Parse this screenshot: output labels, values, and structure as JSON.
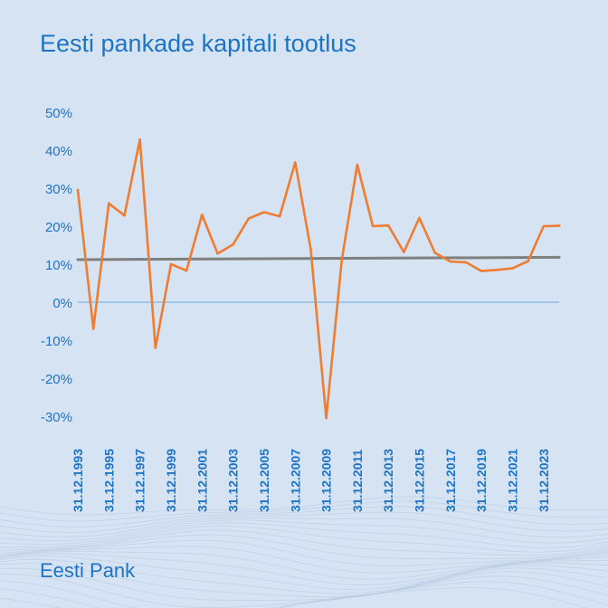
{
  "title": "Eesti pankade kapitali tootlus",
  "brand": "Eesti Pank",
  "colors": {
    "background": "#d6e3f3",
    "accent": "#1e74c4",
    "series_line": "#ee7d31",
    "reference_line": "#7f7f7f",
    "zero_line": "#6fa8dc",
    "waves": "#b9cbe3"
  },
  "chart_data": {
    "type": "line",
    "title": "Eesti pankade kapitali tootlus",
    "xlabel": "",
    "ylabel": "",
    "ylim": [
      -30,
      50
    ],
    "grid": false,
    "legend": "none",
    "y_ticks": [
      "50%",
      "40%",
      "30%",
      "20%",
      "10%",
      "0%",
      "-10%",
      "-20%",
      "-30%"
    ],
    "y_tick_values": [
      50,
      40,
      30,
      20,
      10,
      0,
      -10,
      -20,
      -30
    ],
    "x_tick_labels": [
      "31.12.1993",
      "31.12.1995",
      "31.12.1997",
      "31.12.1999",
      "31.12.2001",
      "31.12.2003",
      "31.12.2005",
      "31.12.2007",
      "31.12.2009",
      "31.12.2011",
      "31.12.2013",
      "31.12.2015",
      "31.12.2017",
      "31.12.2019",
      "31.12.2021",
      "31.12.2023"
    ],
    "x_tick_years": [
      1993,
      1995,
      1997,
      1999,
      2001,
      2003,
      2005,
      2007,
      2009,
      2011,
      2013,
      2015,
      2017,
      2019,
      2021,
      2023
    ],
    "x_range": [
      1993,
      2024
    ],
    "series": [
      {
        "x": [
          1993,
          1994,
          1995,
          1996,
          1997,
          1998,
          1999,
          2000,
          2001,
          2002,
          2003,
          2004,
          2005,
          2006,
          2007,
          2008,
          2009,
          2010,
          2011,
          2012,
          2013,
          2014,
          2015,
          2016,
          2017,
          2018,
          2019,
          2020,
          2021,
          2022,
          2023,
          2024
        ],
        "y": [
          29.5,
          -7,
          26,
          22.8,
          42.8,
          -12,
          10,
          8.3,
          23,
          12.8,
          15.2,
          22,
          23.7,
          22.6,
          36.8,
          14,
          -30.5,
          11,
          36.2,
          20,
          20.2,
          13.2,
          22.2,
          13,
          10.7,
          10.5,
          8.2,
          8.5,
          8.9,
          10.8,
          20,
          20.1
        ],
        "color": "#ee7d31"
      },
      {
        "x": [
          1993,
          2024
        ],
        "y": [
          11.2,
          11.8
        ],
        "color": "#7f7f7f"
      }
    ]
  }
}
